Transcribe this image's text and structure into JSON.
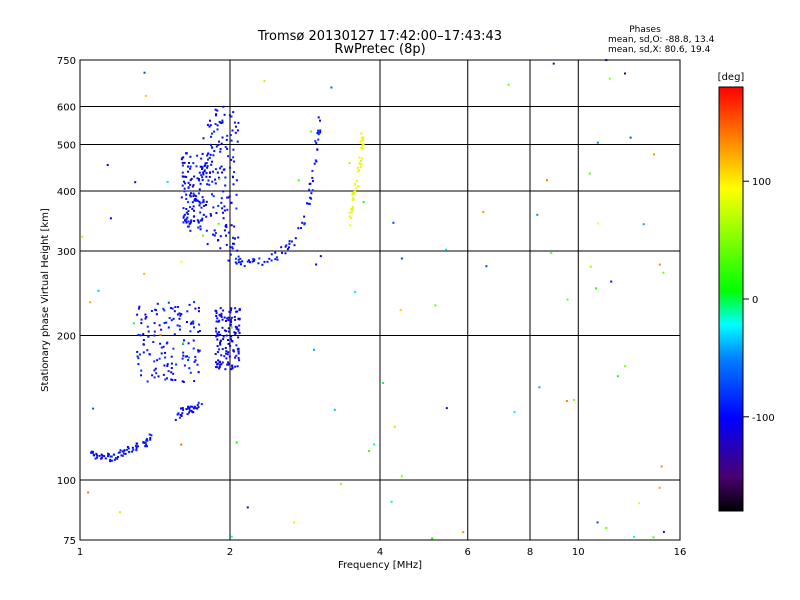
{
  "title": {
    "line1": "Tromsø 20130127 17:42:00–17:43:43",
    "line2": "RwPretec (8p)"
  },
  "phases": {
    "heading": "Phases",
    "o_line": "mean, sd,O: -88.8, 13.4",
    "x_line": "mean, sd,X: 80.6, 19.4"
  },
  "colorbar": {
    "unit_label": "[deg]",
    "tick_labels": [
      "100",
      "0",
      "-100"
    ]
  },
  "colors": {
    "grid": "#000000",
    "background": "#ffffff"
  },
  "chart_data": {
    "type": "scatter",
    "xlabel": "Frequency [MHz]",
    "ylabel": "Stationary phase Virtual Height [km]",
    "x_scale": "log",
    "y_scale": "log",
    "xlim": [
      1,
      16
    ],
    "ylim": [
      75,
      750
    ],
    "x_ticks": [
      1,
      2,
      4,
      6,
      8,
      10,
      16
    ],
    "x_tick_labels": [
      "1",
      "2",
      "4",
      "6",
      "8",
      "10",
      "16"
    ],
    "y_ticks": [
      75,
      100,
      200,
      300,
      400,
      500,
      600,
      750
    ],
    "y_tick_labels": [
      "75",
      "100",
      "200",
      "300",
      "400",
      "500",
      "600",
      "750"
    ],
    "grid": true,
    "color_scale": "phase in degrees, rainbow from black (-180) through blue (-100), cyan, green (0), yellow (100) to red (180)",
    "clusters": [
      {
        "region": "E layer trace",
        "points": [
          [
            1.05,
            113
          ],
          [
            1.08,
            112
          ],
          [
            1.12,
            111
          ],
          [
            1.16,
            112
          ],
          [
            1.2,
            113
          ],
          [
            1.24,
            115
          ],
          [
            1.28,
            116
          ],
          [
            1.32,
            118
          ],
          [
            1.36,
            120
          ],
          [
            1.4,
            124
          ]
        ],
        "phase": -95
      },
      {
        "region": "F1 O trace lower",
        "points": [
          [
            1.55,
            135
          ],
          [
            1.6,
            138
          ],
          [
            1.65,
            140
          ],
          [
            1.7,
            142
          ],
          [
            1.75,
            145
          ]
        ],
        "phase": -100
      },
      {
        "region": "Sporadic cluster 170-240 km",
        "range_x": [
          1.3,
          1.75
        ],
        "range_y": [
          160,
          235
        ],
        "phase": -95
      },
      {
        "region": "Cluster near 2 MHz 170-230 km",
        "range_x": [
          1.87,
          2.1
        ],
        "range_y": [
          170,
          230
        ],
        "phase": -105
      },
      {
        "region": "F2 O lower cluster",
        "range_x": [
          1.6,
          1.8
        ],
        "range_y": [
          330,
          480
        ],
        "phase": -100
      },
      {
        "region": "F2 O main column",
        "range_x": [
          1.8,
          2.08
        ],
        "range_y": [
          300,
          600
        ],
        "phase": -98
      },
      {
        "region": "F2 O trace",
        "points": [
          [
            2.0,
            290
          ],
          [
            2.1,
            285
          ],
          [
            2.2,
            283
          ],
          [
            2.35,
            287
          ],
          [
            2.5,
            295
          ],
          [
            2.65,
            310
          ],
          [
            2.8,
            340
          ],
          [
            2.9,
            390
          ],
          [
            2.95,
            450
          ],
          [
            3.0,
            520
          ],
          [
            3.02,
            580
          ]
        ],
        "phase": -95
      },
      {
        "region": "F2 X trace",
        "points": [
          [
            3.45,
            340
          ],
          [
            3.5,
            360
          ],
          [
            3.55,
            390
          ],
          [
            3.6,
            420
          ],
          [
            3.65,
            460
          ],
          [
            3.68,
            500
          ],
          [
            3.7,
            530
          ]
        ],
        "phase": 85
      }
    ]
  }
}
